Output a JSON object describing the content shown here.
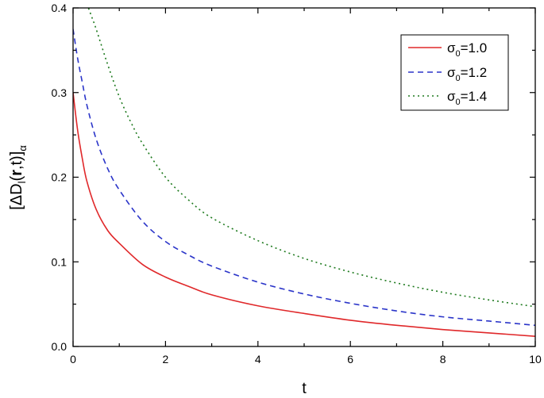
{
  "chart_data": {
    "type": "line",
    "xlabel": "t",
    "ylabel": {
      "prefix": "[ΔD",
      "sub1": "l",
      "open": "(",
      "bold": "r",
      "mid": ",t)]",
      "sub2": "α"
    },
    "xlim": [
      0,
      10
    ],
    "ylim": [
      0,
      0.4
    ],
    "x_ticks": [
      0,
      2,
      4,
      6,
      8,
      10
    ],
    "y_ticks": [
      0.0,
      0.1,
      0.2,
      0.3,
      0.4
    ],
    "x_tick_labels": [
      "0",
      "2",
      "4",
      "6",
      "8",
      "10"
    ],
    "y_tick_labels": [
      "0.0",
      "0.1",
      "0.2",
      "0.3",
      "0.4"
    ],
    "legend_position": "top-right",
    "grid": false,
    "series": [
      {
        "name": "σ₀=1.0",
        "name_parts": {
          "sym": "σ",
          "sub": "0",
          "rest": "=1.0"
        },
        "color": "#e0282a",
        "dash": "solid",
        "x": [
          0,
          0.1,
          0.2,
          0.3,
          0.5,
          0.75,
          1.0,
          1.5,
          2.0,
          2.5,
          3.0,
          4.0,
          5.0,
          6.0,
          7.0,
          8.0,
          9.0,
          10.0
        ],
        "y": [
          0.3,
          0.255,
          0.222,
          0.195,
          0.162,
          0.137,
          0.122,
          0.097,
          0.082,
          0.071,
          0.061,
          0.048,
          0.039,
          0.031,
          0.025,
          0.02,
          0.016,
          0.012
        ]
      },
      {
        "name": "σ₀=1.2",
        "name_parts": {
          "sym": "σ",
          "sub": "0",
          "rest": "=1.2"
        },
        "color": "#2b35c9",
        "dash": "dashed",
        "x": [
          0,
          0.1,
          0.2,
          0.3,
          0.5,
          0.75,
          1.0,
          1.5,
          2.0,
          2.5,
          3.0,
          4.0,
          5.0,
          6.0,
          7.0,
          8.0,
          9.0,
          10.0
        ],
        "y": [
          0.375,
          0.34,
          0.312,
          0.285,
          0.245,
          0.21,
          0.185,
          0.148,
          0.124,
          0.108,
          0.095,
          0.076,
          0.062,
          0.051,
          0.042,
          0.035,
          0.03,
          0.025
        ]
      },
      {
        "name": "σ₀=1.4",
        "name_parts": {
          "sym": "σ",
          "sub": "0",
          "rest": "=1.4"
        },
        "color": "#1e7a1e",
        "dash": "dotted",
        "x": [
          0.3,
          0.4,
          0.5,
          0.75,
          1.0,
          1.25,
          1.5,
          2.0,
          2.5,
          3.0,
          4.0,
          5.0,
          6.0,
          7.0,
          8.0,
          9.0,
          10.0
        ],
        "y": [
          0.405,
          0.39,
          0.375,
          0.333,
          0.295,
          0.265,
          0.24,
          0.2,
          0.173,
          0.152,
          0.125,
          0.104,
          0.088,
          0.075,
          0.064,
          0.055,
          0.047
        ]
      }
    ]
  }
}
